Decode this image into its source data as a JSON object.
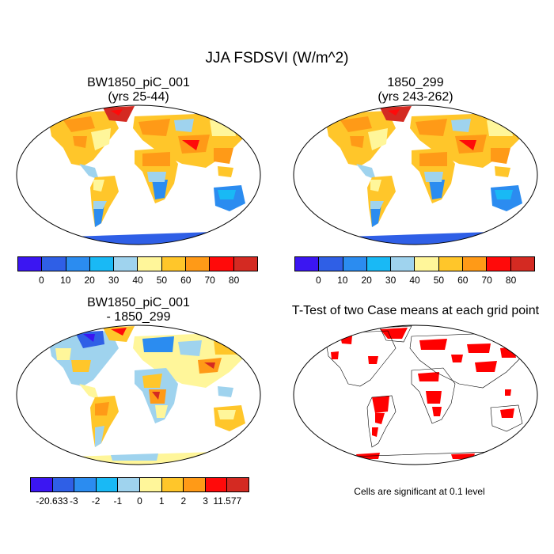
{
  "title": "JJA FSDSVI (W/m^2)",
  "panels": {
    "top_left": {
      "title_line1": "BW1850_piC_001",
      "title_line2": "(yrs 25-44)"
    },
    "top_right": {
      "title_line1": "1850_299",
      "title_line2": "(yrs 243-262)"
    },
    "bottom_left": {
      "title_line1": "BW1850_piC_001",
      "title_line2": "- 1850_299"
    },
    "bottom_right": {
      "title_line1": "T-Test of two Case means at each grid point",
      "note": "Cells are significant at 0.1 level"
    }
  },
  "colorbar_main": {
    "colors": [
      "#3b16f2",
      "#2f5fe6",
      "#2b8cf0",
      "#19b9f5",
      "#9fd3ee",
      "#fff69a",
      "#ffc62a",
      "#ff9a17",
      "#ff0a0a",
      "#d42a22"
    ],
    "labels": [
      "0",
      "10",
      "20",
      "30",
      "40",
      "50",
      "60",
      "70",
      "80"
    ]
  },
  "colorbar_diff": {
    "colors": [
      "#3b16f2",
      "#2f5fe6",
      "#2b8cf0",
      "#19b9f5",
      "#9fd3ee",
      "#fff69a",
      "#ffc62a",
      "#ff9a17",
      "#ff0a0a",
      "#d42a22"
    ],
    "labels": [
      "-20.633",
      "-3",
      "-2",
      "-1",
      "0",
      "1",
      "2",
      "3",
      "11.577"
    ]
  },
  "ttest_color": "#ff0000"
}
